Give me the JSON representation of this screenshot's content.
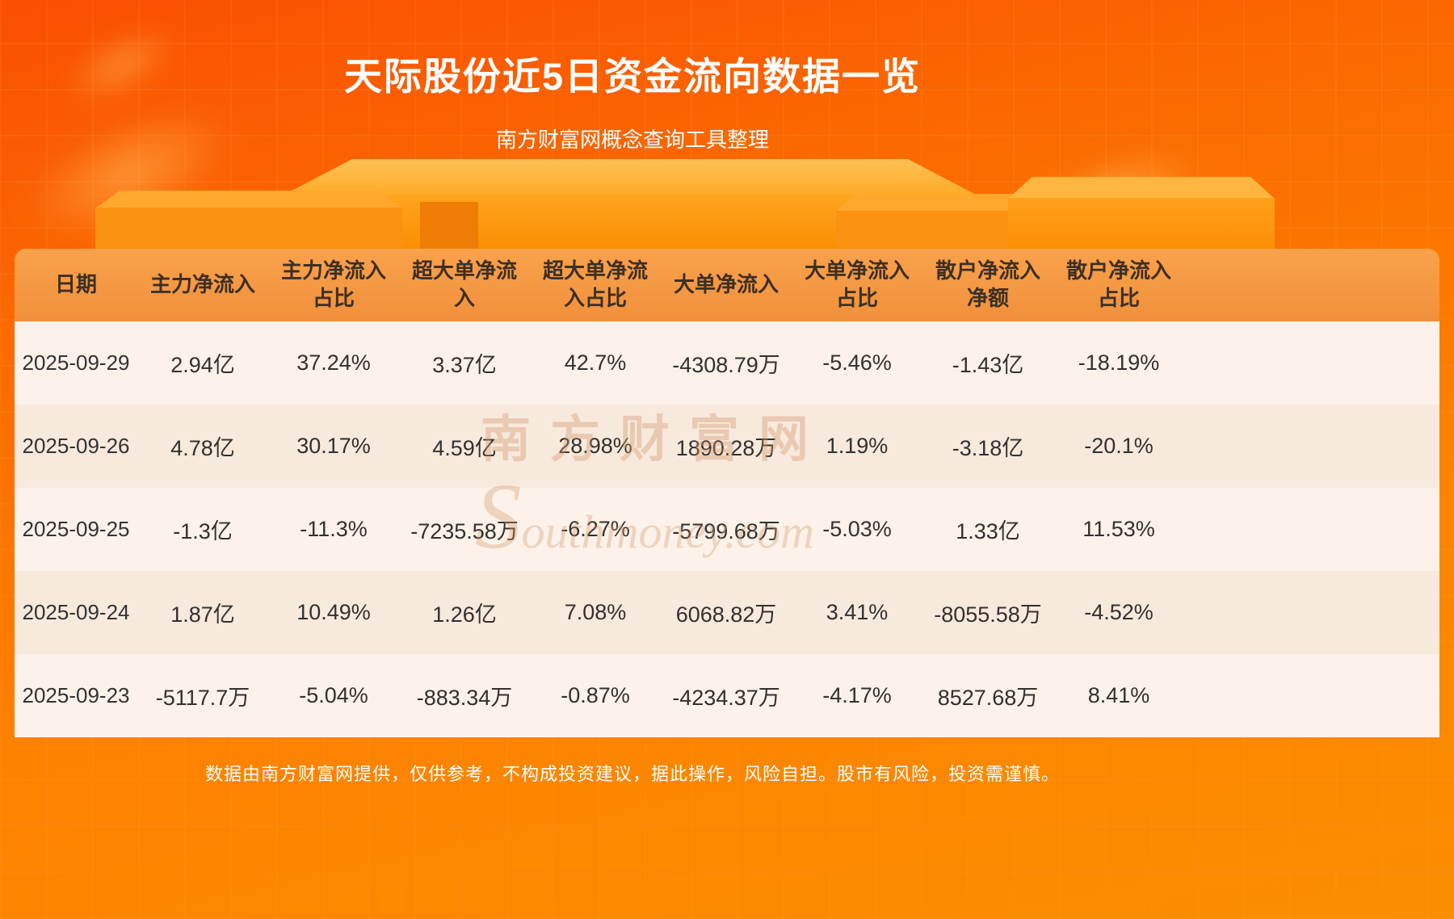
{
  "header": {
    "title": "天际股份近5日资金流向数据一览",
    "subtitle": "南方财富网概念查询工具整理"
  },
  "watermark": {
    "cn": "南方财富网",
    "en": "Southmoney.com"
  },
  "footer": {
    "disclaimer": "数据由南方财富网提供，仅供参考，不构成投资建议，据此操作，风险自担。股市有风险，投资需谨慎。"
  },
  "colors": {
    "background_orange": "#fb6a00",
    "table_header_orange": "#f59a45",
    "row_light": "#fcf2e9",
    "row_dark": "#f8e9dd",
    "header_text": "#3d2f23",
    "body_text": "#333333",
    "title_text": "#ffffff"
  },
  "chart_data": {
    "type": "table",
    "title": "天际股份近5日资金流向数据一览",
    "subtitle": "南方财富网概念查询工具整理",
    "columns": [
      "日期",
      "主力净流入",
      "主力净流入占比",
      "超大单净流入",
      "超大单净流入占比",
      "大单净流入",
      "大单净流入占比",
      "散户净流入净额",
      "散户净流入占比"
    ],
    "rows": [
      [
        "2025-09-29",
        "2.94亿",
        "37.24%",
        "3.37亿",
        "42.7%",
        "-4308.79万",
        "-5.46%",
        "-1.43亿",
        "-18.19%"
      ],
      [
        "2025-09-26",
        "4.78亿",
        "30.17%",
        "4.59亿",
        "28.98%",
        "1890.28万",
        "1.19%",
        "-3.18亿",
        "-20.1%"
      ],
      [
        "2025-09-25",
        "-1.3亿",
        "-11.3%",
        "-7235.58万",
        "-6.27%",
        "-5799.68万",
        "-5.03%",
        "1.33亿",
        "11.53%"
      ],
      [
        "2025-09-24",
        "1.87亿",
        "10.49%",
        "1.26亿",
        "7.08%",
        "6068.82万",
        "3.41%",
        "-8055.58万",
        "-4.52%"
      ],
      [
        "2025-09-23",
        "-5117.7万",
        "-5.04%",
        "-883.34万",
        "-0.87%",
        "-4234.37万",
        "-4.17%",
        "8527.68万",
        "8.41%"
      ]
    ]
  }
}
